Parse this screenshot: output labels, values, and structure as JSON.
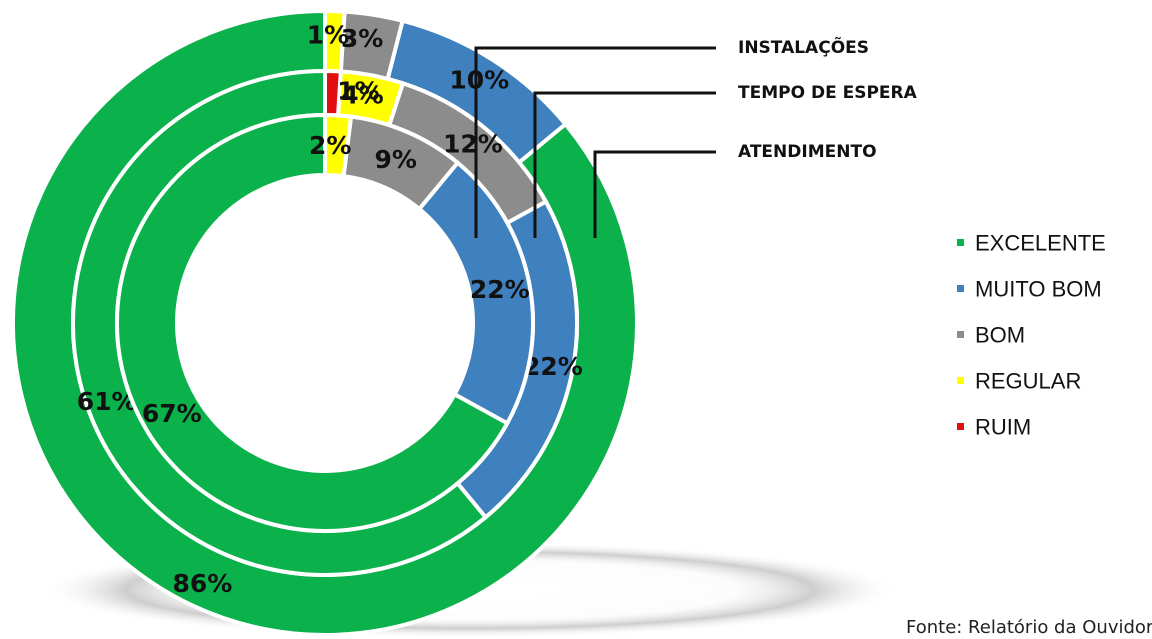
{
  "chart_data": {
    "type": "donut",
    "rings": [
      {
        "name": "INSTALAÇÕES",
        "values": {
          "EXCELENTE": 86,
          "MUITO BOM": 10,
          "BOM": 3,
          "REGULAR": 1,
          "RUIM": 0
        },
        "labels": {
          "EXCELENTE": "86%",
          "MUITO BOM": "10%",
          "BOM": "3%",
          "REGULAR": "1%"
        }
      },
      {
        "name": "TEMPO DE ESPERA",
        "values": {
          "EXCELENTE": 61,
          "MUITO BOM": 22,
          "BOM": 12,
          "REGULAR": 4,
          "RUIM": 1
        },
        "labels": {
          "EXCELENTE": "61%",
          "MUITO BOM": "22%",
          "BOM": "12%",
          "REGULAR": "4%",
          "RUIM": "1%"
        }
      },
      {
        "name": "ATENDIMENTO",
        "values": {
          "EXCELENTE": 67,
          "MUITO BOM": 22,
          "BOM": 9,
          "REGULAR": 2,
          "RUIM": 0
        },
        "labels": {
          "EXCELENTE": "67%",
          "MUITO BOM": "22%",
          "BOM": "9%",
          "REGULAR": "2%"
        }
      }
    ],
    "legend": [
      {
        "label": "EXCELENTE",
        "color": "#0bb14b"
      },
      {
        "label": "MUITO BOM",
        "color": "#3f80bf"
      },
      {
        "label": "BOM",
        "color": "#8c8c8c"
      },
      {
        "label": "REGULAR",
        "color": "#ffff00"
      },
      {
        "label": "RUIM",
        "color": "#e01010"
      }
    ],
    "legend_position": "right"
  },
  "source_text": "Fonte: Relatório da Ouvidoria"
}
